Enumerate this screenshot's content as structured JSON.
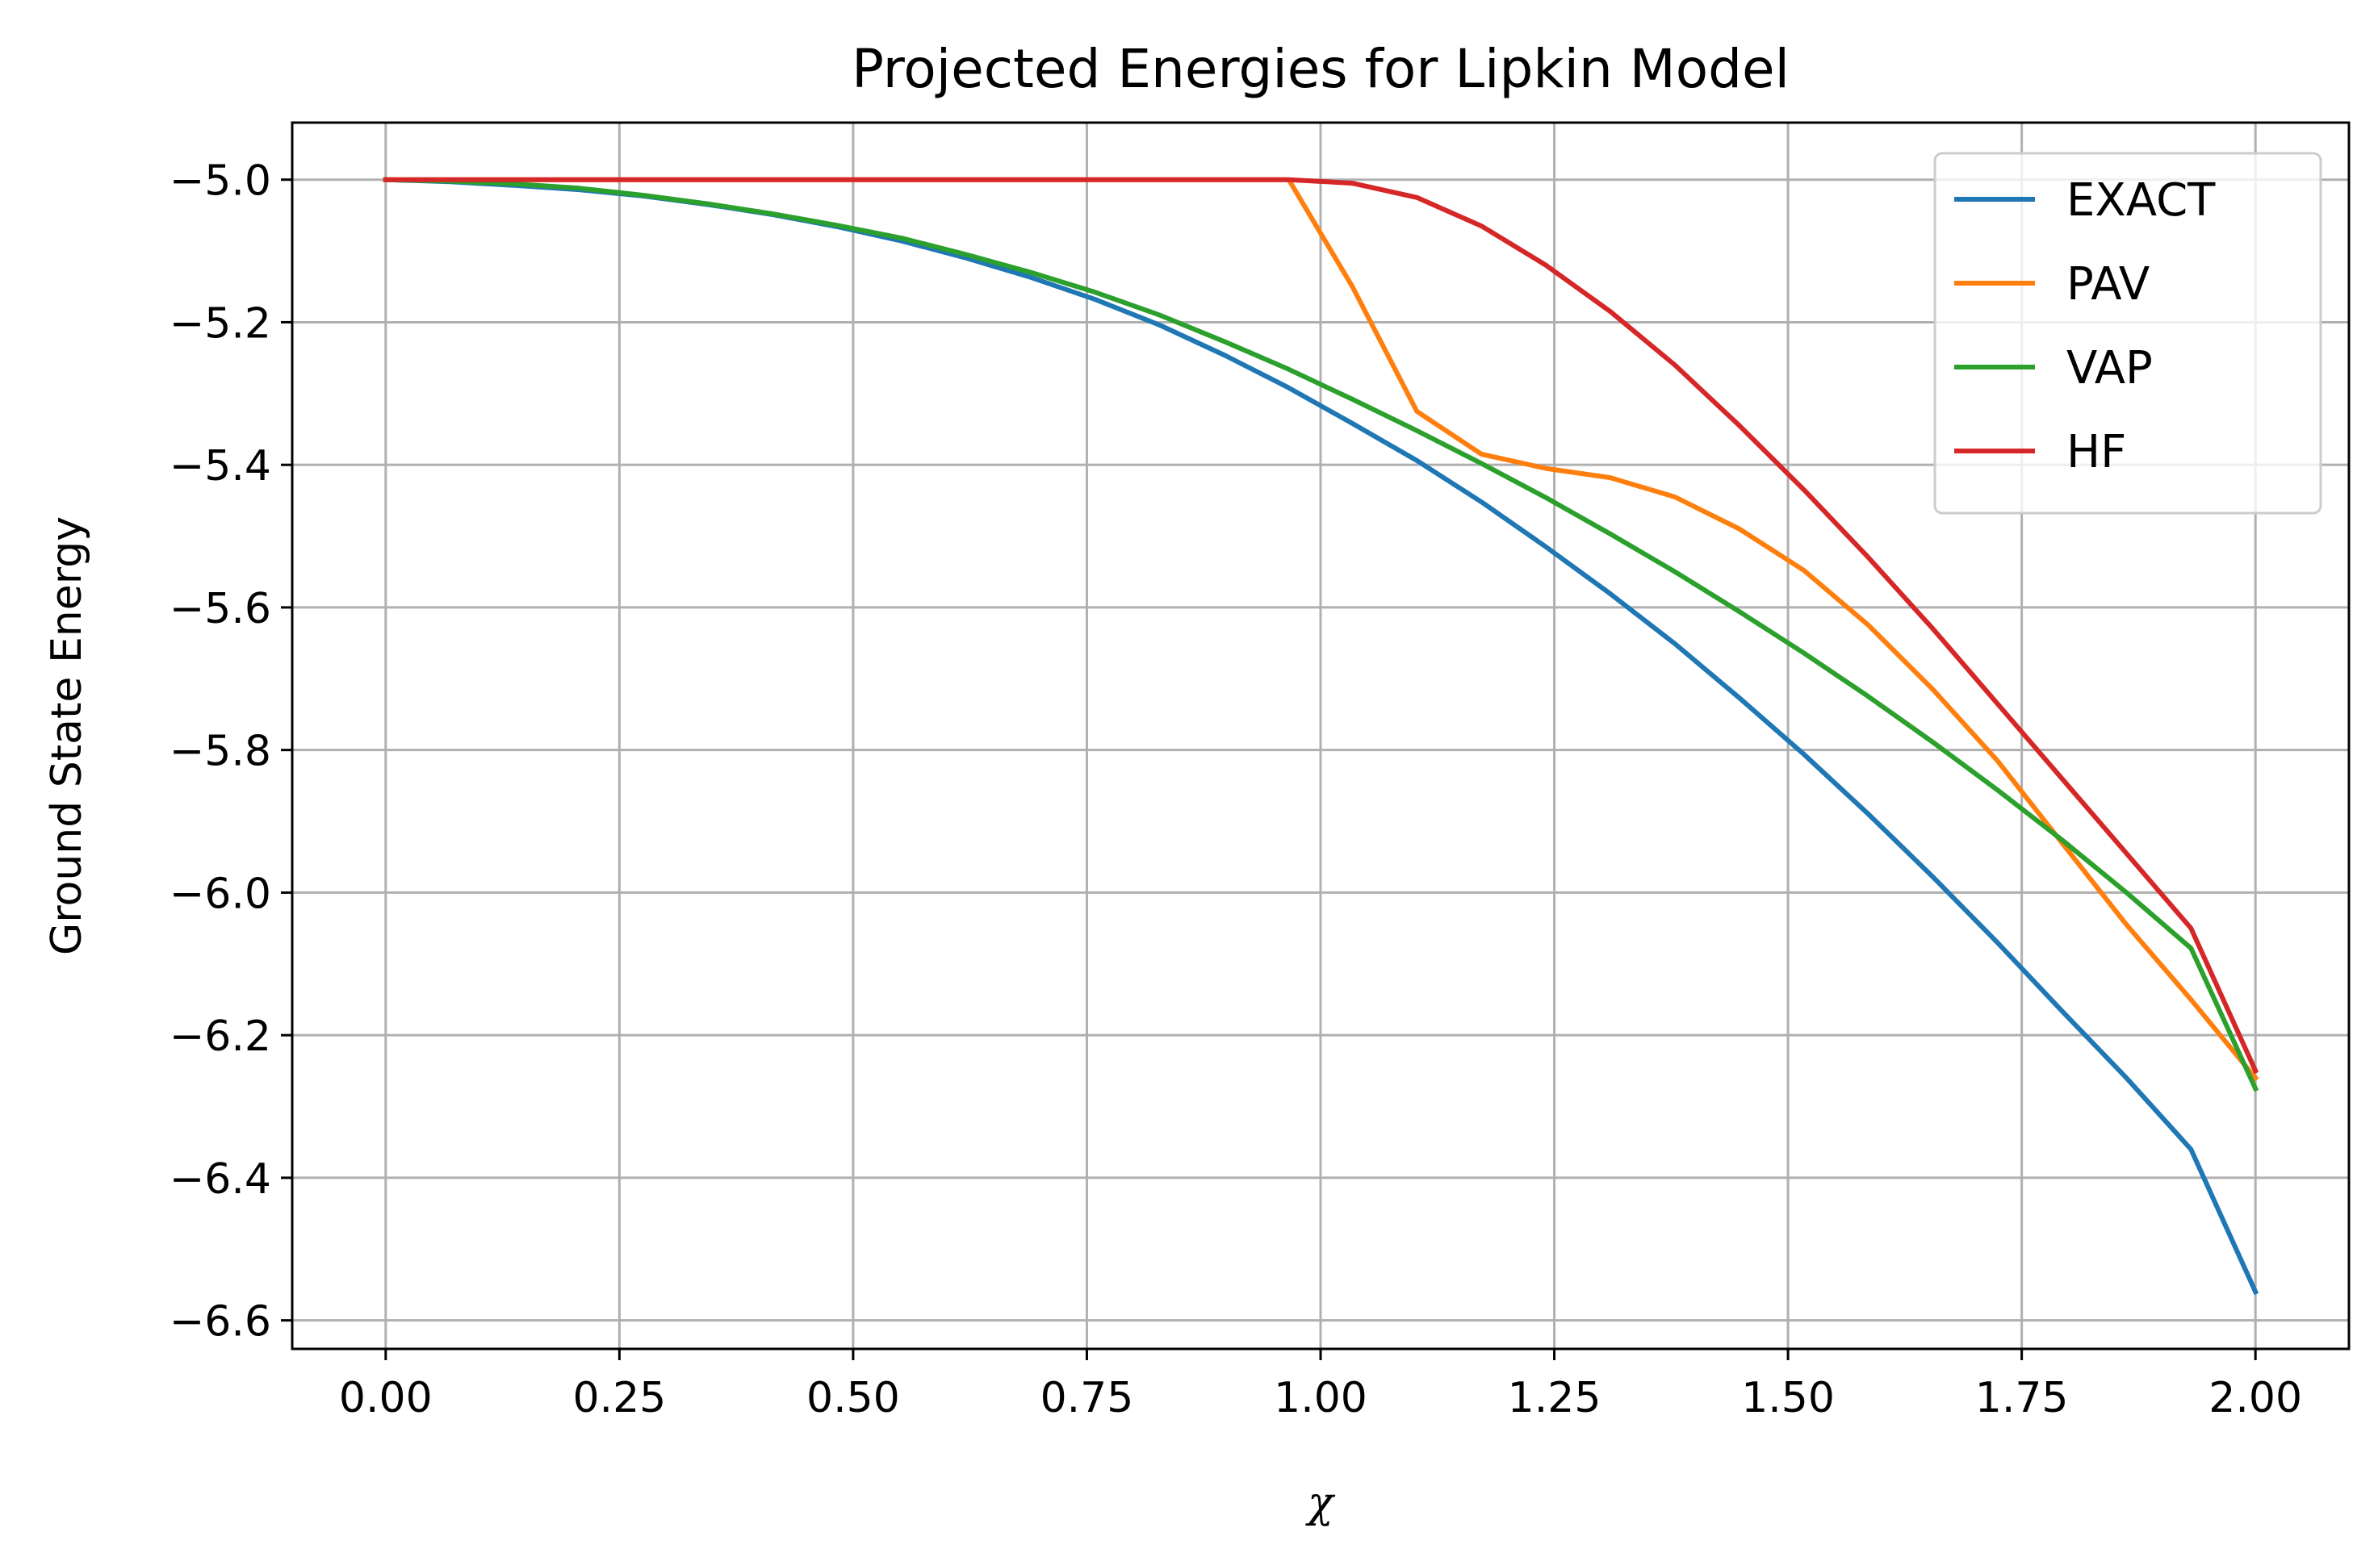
{
  "chart_data": {
    "type": "line",
    "title": "Projected Energies for Lipkin Model",
    "xlabel": "χ",
    "ylabel": "Ground State Energy",
    "xlim": [
      -0.1,
      2.1
    ],
    "ylim": [
      -6.64,
      -4.92
    ],
    "xticks": [
      0.0,
      0.25,
      0.5,
      0.75,
      1.0,
      1.25,
      1.5,
      1.75,
      2.0
    ],
    "xtick_labels": [
      "0.00",
      "0.25",
      "0.50",
      "0.75",
      "1.00",
      "1.25",
      "1.50",
      "1.75",
      "2.00"
    ],
    "yticks": [
      -5.0,
      -5.2,
      -5.4,
      -5.6,
      -5.8,
      -6.0,
      -6.2,
      -6.4,
      -6.6
    ],
    "ytick_labels": [
      "−5.0",
      "−5.2",
      "−5.4",
      "−5.6",
      "−5.8",
      "−6.0",
      "−6.2",
      "−6.4",
      "−6.6"
    ],
    "grid": true,
    "legend_position": "top-right",
    "series": [
      {
        "name": "EXACT",
        "color": "#1f77b4",
        "x": [
          0.0,
          0.069,
          0.138,
          0.207,
          0.276,
          0.345,
          0.414,
          0.483,
          0.552,
          0.621,
          0.69,
          0.759,
          0.828,
          0.897,
          0.966,
          1.034,
          1.103,
          1.172,
          1.241,
          1.31,
          1.379,
          1.448,
          1.517,
          1.586,
          1.655,
          1.724,
          1.793,
          1.862,
          1.931,
          2.0
        ],
        "y": [
          -5.0,
          -5.003,
          -5.008,
          -5.014,
          -5.023,
          -5.035,
          -5.049,
          -5.066,
          -5.086,
          -5.11,
          -5.137,
          -5.168,
          -5.204,
          -5.246,
          -5.292,
          -5.342,
          -5.394,
          -5.452,
          -5.515,
          -5.581,
          -5.651,
          -5.727,
          -5.806,
          -5.89,
          -5.978,
          -6.07,
          -6.166,
          -6.26,
          -6.36,
          -6.56
        ]
      },
      {
        "name": "PAV",
        "color": "#ff7f0e",
        "x": [
          0.0,
          0.069,
          0.138,
          0.207,
          0.276,
          0.345,
          0.414,
          0.483,
          0.552,
          0.621,
          0.69,
          0.759,
          0.828,
          0.897,
          0.966,
          1.034,
          1.103,
          1.172,
          1.241,
          1.31,
          1.379,
          1.448,
          1.517,
          1.586,
          1.655,
          1.724,
          1.793,
          1.862,
          1.931,
          2.0
        ],
        "y": [
          -5.0,
          -5.0,
          -5.0,
          -5.0,
          -5.0,
          -5.0,
          -5.0,
          -5.0,
          -5.0,
          -5.0,
          -5.0,
          -5.0,
          -5.0,
          -5.0,
          -5.0,
          -5.15,
          -5.325,
          -5.385,
          -5.405,
          -5.418,
          -5.445,
          -5.49,
          -5.548,
          -5.625,
          -5.715,
          -5.815,
          -5.93,
          -6.045,
          -6.15,
          -6.26
        ]
      },
      {
        "name": "VAP",
        "color": "#2ca02c",
        "x": [
          0.0,
          0.069,
          0.138,
          0.207,
          0.276,
          0.345,
          0.414,
          0.483,
          0.552,
          0.621,
          0.69,
          0.759,
          0.828,
          0.897,
          0.966,
          1.034,
          1.103,
          1.172,
          1.241,
          1.31,
          1.379,
          1.448,
          1.517,
          1.586,
          1.655,
          1.724,
          1.793,
          1.862,
          1.931,
          2.0
        ],
        "y": [
          -5.0,
          -5.002,
          -5.006,
          -5.012,
          -5.022,
          -5.034,
          -5.048,
          -5.064,
          -5.082,
          -5.105,
          -5.13,
          -5.158,
          -5.19,
          -5.227,
          -5.266,
          -5.308,
          -5.352,
          -5.398,
          -5.446,
          -5.497,
          -5.55,
          -5.606,
          -5.664,
          -5.725,
          -5.789,
          -5.856,
          -5.926,
          -6.0,
          -6.078,
          -6.275
        ]
      },
      {
        "name": "HF",
        "color": "#d62728",
        "x": [
          0.0,
          0.069,
          0.138,
          0.207,
          0.276,
          0.345,
          0.414,
          0.483,
          0.552,
          0.621,
          0.69,
          0.759,
          0.828,
          0.897,
          0.966,
          1.034,
          1.103,
          1.172,
          1.241,
          1.31,
          1.379,
          1.448,
          1.517,
          1.586,
          1.655,
          1.724,
          1.793,
          1.862,
          1.931,
          2.0
        ],
        "y": [
          -5.0,
          -5.0,
          -5.0,
          -5.0,
          -5.0,
          -5.0,
          -5.0,
          -5.0,
          -5.0,
          -5.0,
          -5.0,
          -5.0,
          -5.0,
          -5.0,
          -5.0,
          -5.005,
          -5.025,
          -5.065,
          -5.12,
          -5.185,
          -5.26,
          -5.345,
          -5.435,
          -5.53,
          -5.63,
          -5.735,
          -5.84,
          -5.945,
          -6.05,
          -6.25
        ]
      }
    ]
  }
}
